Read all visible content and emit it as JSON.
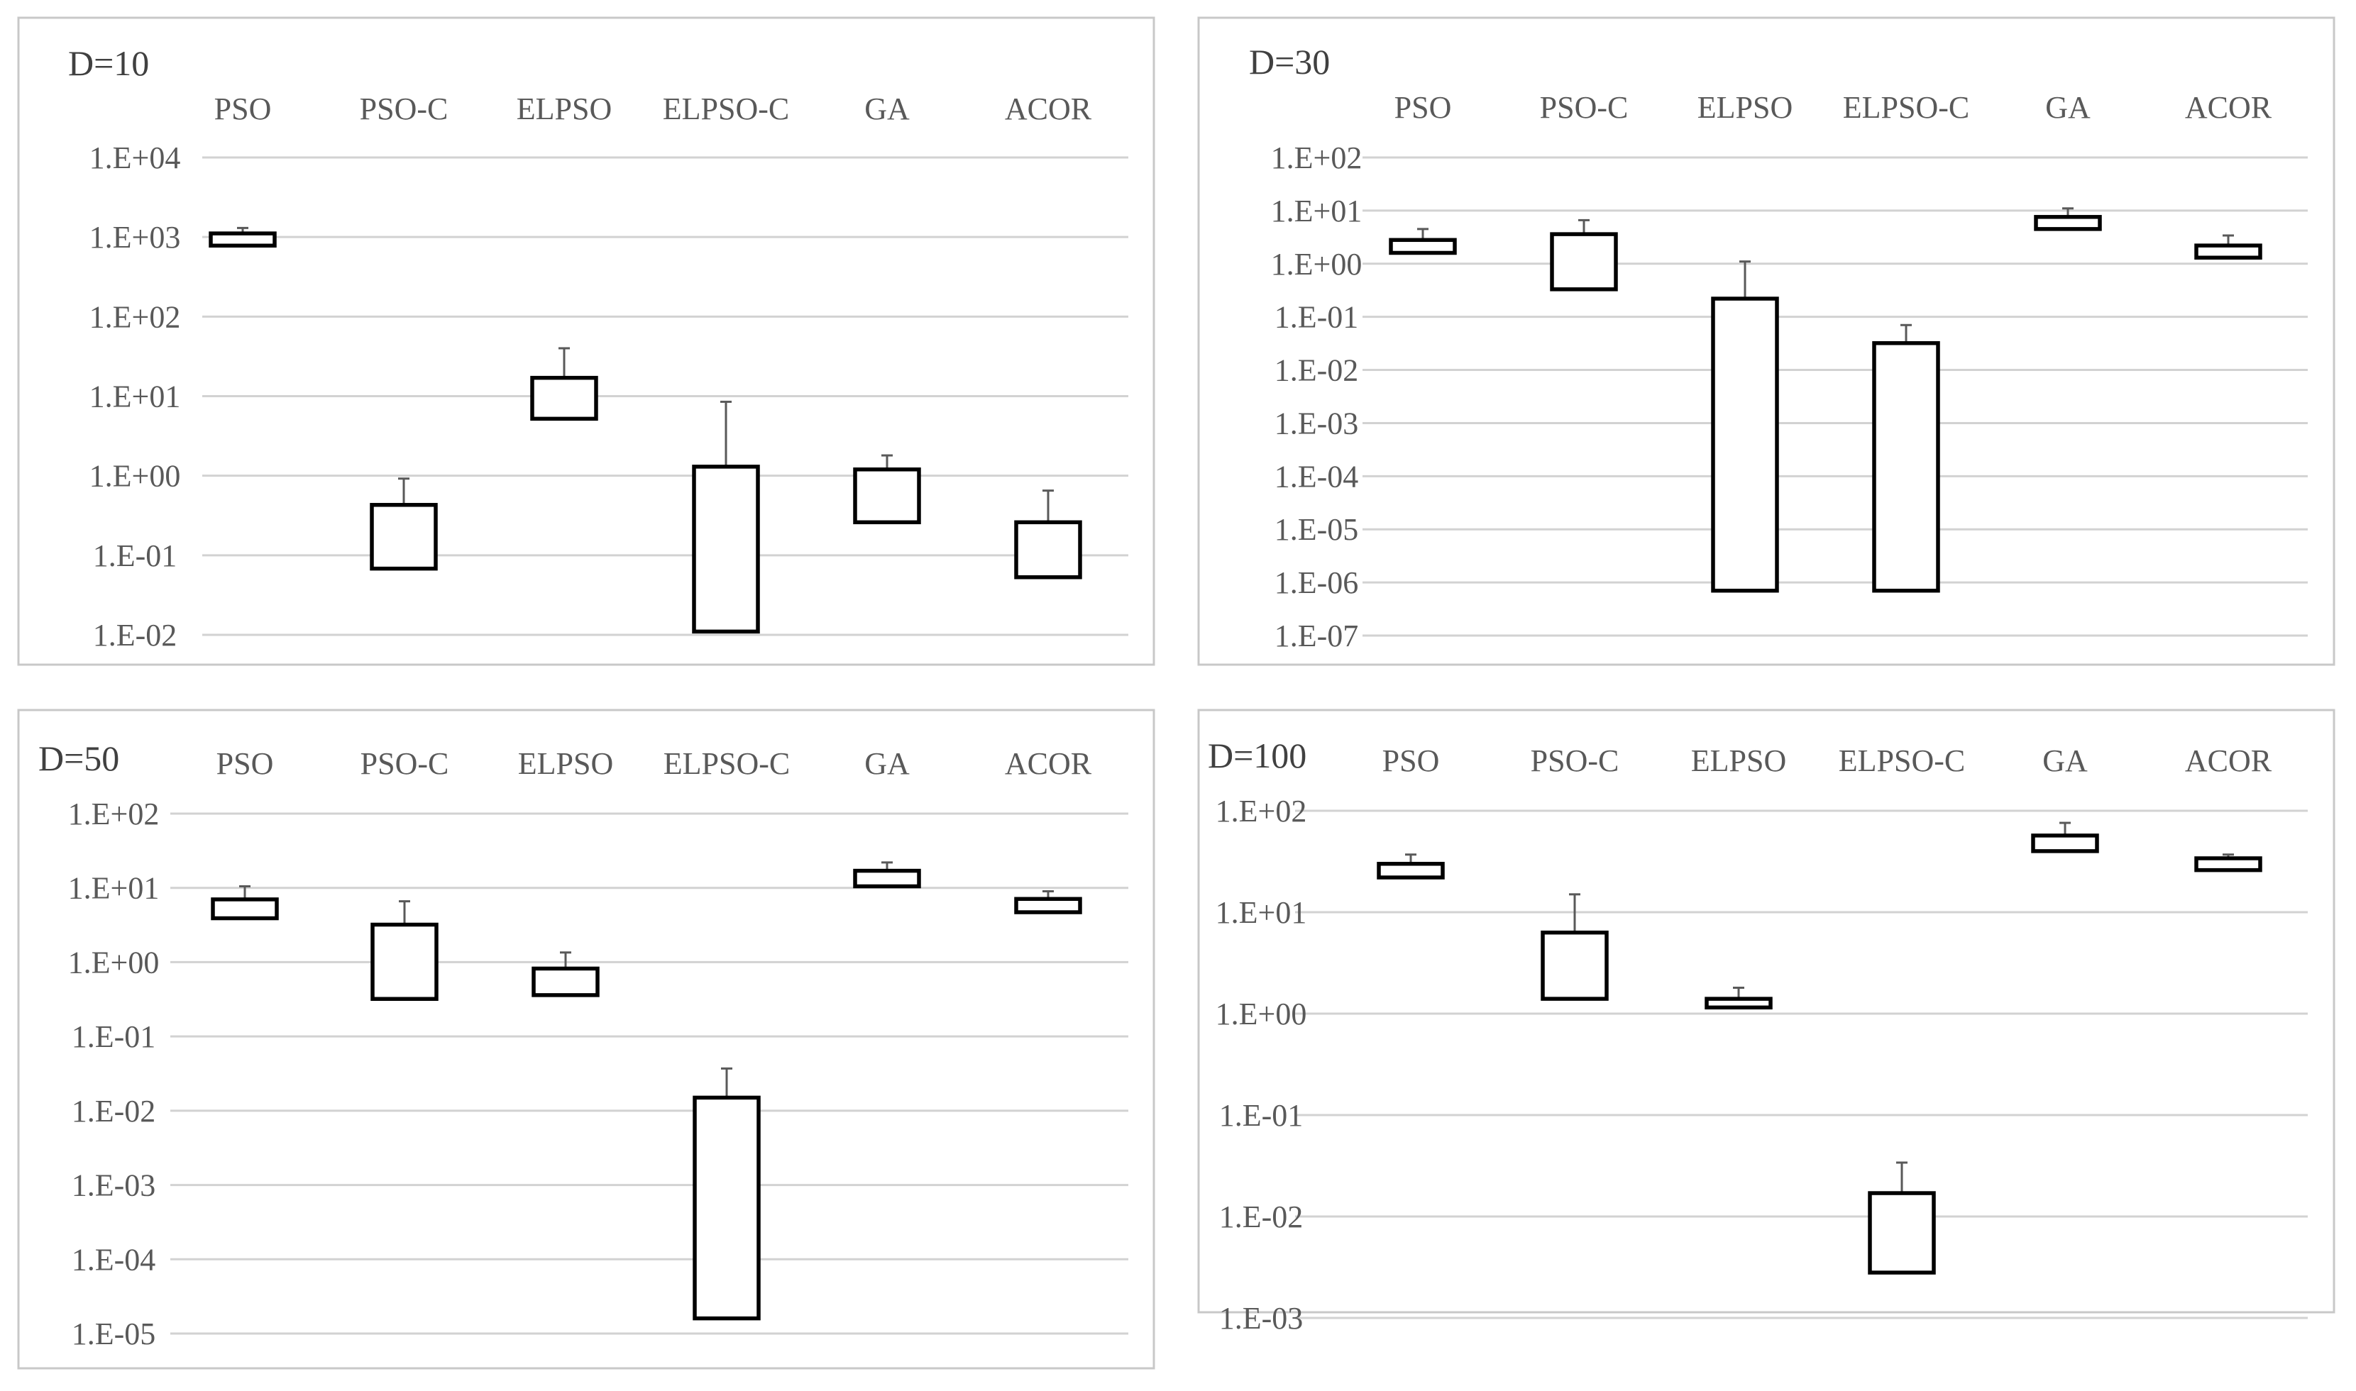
{
  "chart_data": [
    {
      "type": "bar",
      "title": "D=10",
      "categories": [
        "PSO",
        "PSO-C",
        "ELPSO",
        "ELPSO-C",
        "GA",
        "ACOR"
      ],
      "y_scale": "log",
      "ylim": [
        0.01,
        10000
      ],
      "ytick_labels": [
        "1.E+04",
        "1.E+03",
        "1.E+02",
        "1.E+01",
        "1.E+00",
        "1.E-01",
        "1.E-02"
      ],
      "box_low": [
        780,
        0.068,
        5.2,
        0.011,
        0.26,
        0.053
      ],
      "box_high": [
        1110,
        0.43,
        17,
        1.3,
        1.2,
        0.26
      ],
      "whisker": [
        1300,
        0.92,
        40,
        8.5,
        1.8,
        0.65
      ]
    },
    {
      "type": "bar",
      "title": "D=30",
      "categories": [
        "PSO",
        "PSO-C",
        "ELPSO",
        "ELPSO-C",
        "GA",
        "ACOR"
      ],
      "y_scale": "log",
      "ylim": [
        1e-07,
        100
      ],
      "ytick_labels": [
        "1.E+02",
        "1.E+01",
        "1.E+00",
        "1.E-01",
        "1.E-02",
        "1.E-03",
        "1.E-04",
        "1.E-05",
        "1.E-06",
        "1.E-07"
      ],
      "box_low": [
        1.6,
        0.33,
        7e-07,
        7e-07,
        4.5,
        1.3
      ],
      "box_high": [
        2.8,
        3.6,
        0.22,
        0.032,
        7.6,
        2.2
      ],
      "whisker": [
        4.5,
        6.6,
        1.1,
        0.07,
        11,
        3.4
      ]
    },
    {
      "type": "bar",
      "title": "D=50",
      "categories": [
        "PSO",
        "PSO-C",
        "ELPSO",
        "ELPSO-C",
        "GA",
        "ACOR"
      ],
      "y_scale": "log",
      "ylim": [
        1e-05,
        100
      ],
      "ytick_labels": [
        "1.E+02",
        "1.E+01",
        "1.E+00",
        "1.E-01",
        "1.E-02",
        "1.E-03",
        "1.E-04",
        "1.E-05"
      ],
      "box_low": [
        3.9,
        0.32,
        0.36,
        1.6e-05,
        10.5,
        4.7
      ],
      "box_high": [
        7,
        3.2,
        0.82,
        0.015,
        17,
        7.1
      ],
      "whisker": [
        10.5,
        6.6,
        1.35,
        0.037,
        22,
        9
      ]
    },
    {
      "type": "bar",
      "title": "D=100",
      "categories": [
        "PSO",
        "PSO-C",
        "ELPSO",
        "ELPSO-C",
        "GA",
        "ACOR"
      ],
      "y_scale": "log",
      "ylim": [
        0.001,
        100
      ],
      "ytick_labels": [
        "1.E+02",
        "1.E+01",
        "1.E+00",
        "1.E-01",
        "1.E-02",
        "1.E-03"
      ],
      "box_low": [
        22,
        1.4,
        1.15,
        0.0028,
        40,
        26
      ],
      "box_high": [
        30,
        6.3,
        1.4,
        0.017,
        57,
        34
      ],
      "whisker": [
        37,
        15,
        1.8,
        0.034,
        76,
        37
      ]
    }
  ]
}
